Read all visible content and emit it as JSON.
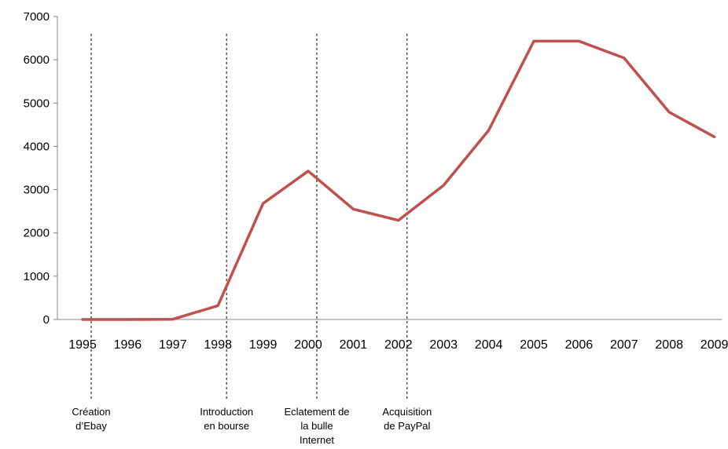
{
  "chart_data": {
    "type": "line",
    "x": [
      "1995",
      "1996",
      "1997",
      "1998",
      "1999",
      "2000",
      "2001",
      "2002",
      "2003",
      "2004",
      "2005",
      "2006",
      "2007",
      "2008",
      "2009"
    ],
    "series": [
      {
        "values": [
          0,
          0,
          5,
          320,
          2680,
          3430,
          2550,
          2290,
          3100,
          4370,
          6430,
          6430,
          6040,
          4790,
          4220
        ]
      }
    ],
    "ylim": [
      0,
      7000
    ],
    "yticks": [
      "0",
      "1000",
      "2000",
      "3000",
      "4000",
      "5000",
      "6000",
      "7000"
    ],
    "grid": false,
    "line_color": "#c0504d",
    "annotations": [
      {
        "year": "1995",
        "lines": [
          "Création",
          "d’Ebay"
        ]
      },
      {
        "year": "1998",
        "lines": [
          "Introduction",
          "en bourse"
        ]
      },
      {
        "year": "2000",
        "lines": [
          "Eclatement de",
          "la bulle",
          "Internet"
        ]
      },
      {
        "year": "2002",
        "lines": [
          "Acquisition",
          "de PayPal"
        ]
      }
    ]
  }
}
